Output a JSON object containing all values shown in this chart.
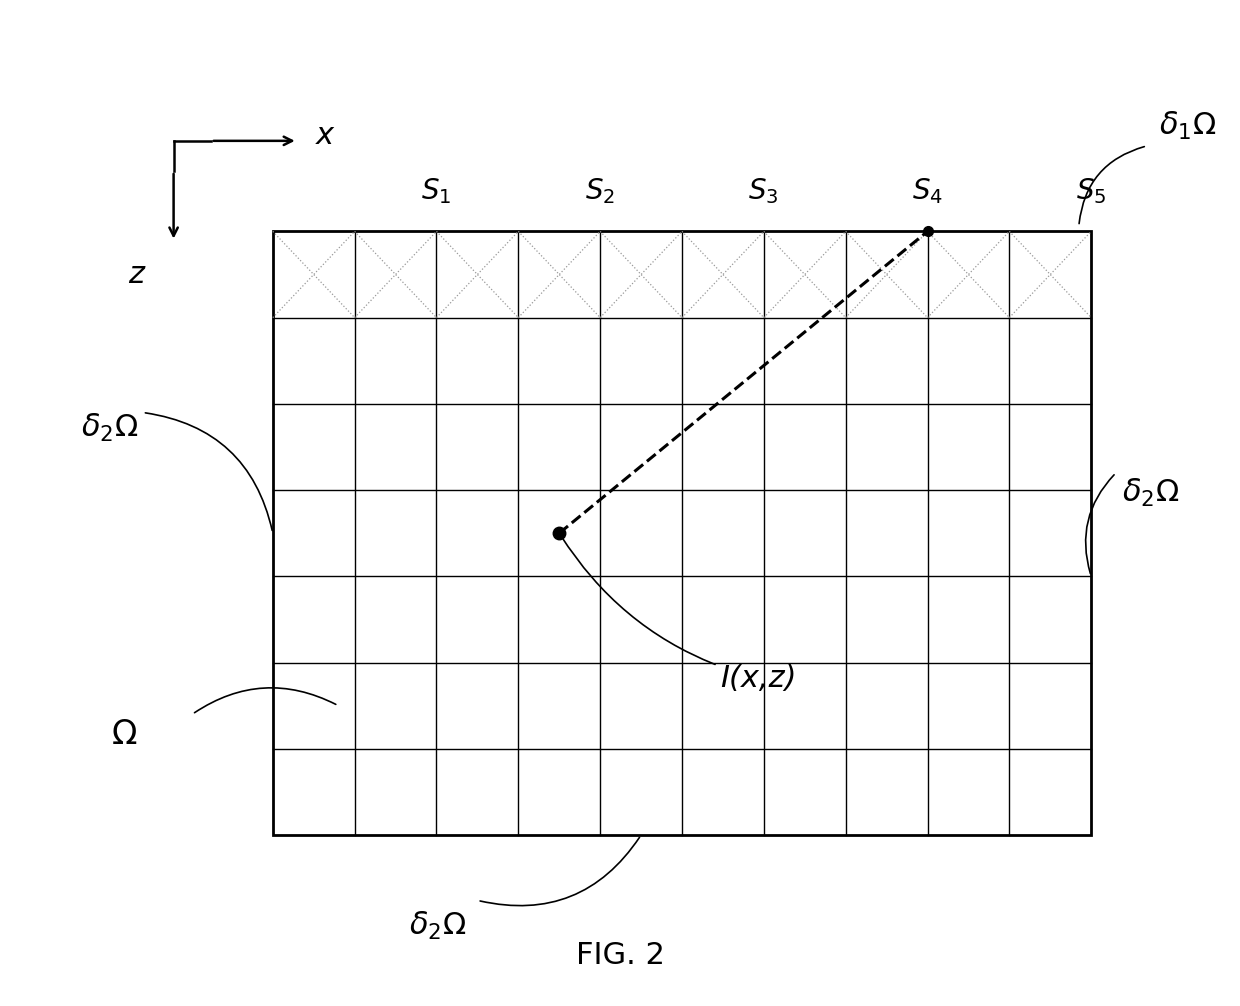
{
  "bg_color": "#ffffff",
  "grid_color": "#000000",
  "gl": 0.22,
  "gr": 0.88,
  "gt": 0.77,
  "gb": 0.17,
  "n_cols": 10,
  "n_rows": 7,
  "dotted_color": "#888888",
  "source_labels": [
    "S$_1$",
    "S$_2$",
    "S$_3$",
    "S$_4$",
    "S$_5$"
  ],
  "source_col_boundaries": [
    2,
    4,
    6,
    8,
    10
  ],
  "fig_title": "FIG. 2",
  "axis_x_label": "x",
  "axis_z_label": "z",
  "title_fontsize": 22,
  "label_fontsize": 22,
  "source_fontsize": 20,
  "point_col": 3.5,
  "point_row": 3.5,
  "s4_col": 7.5
}
